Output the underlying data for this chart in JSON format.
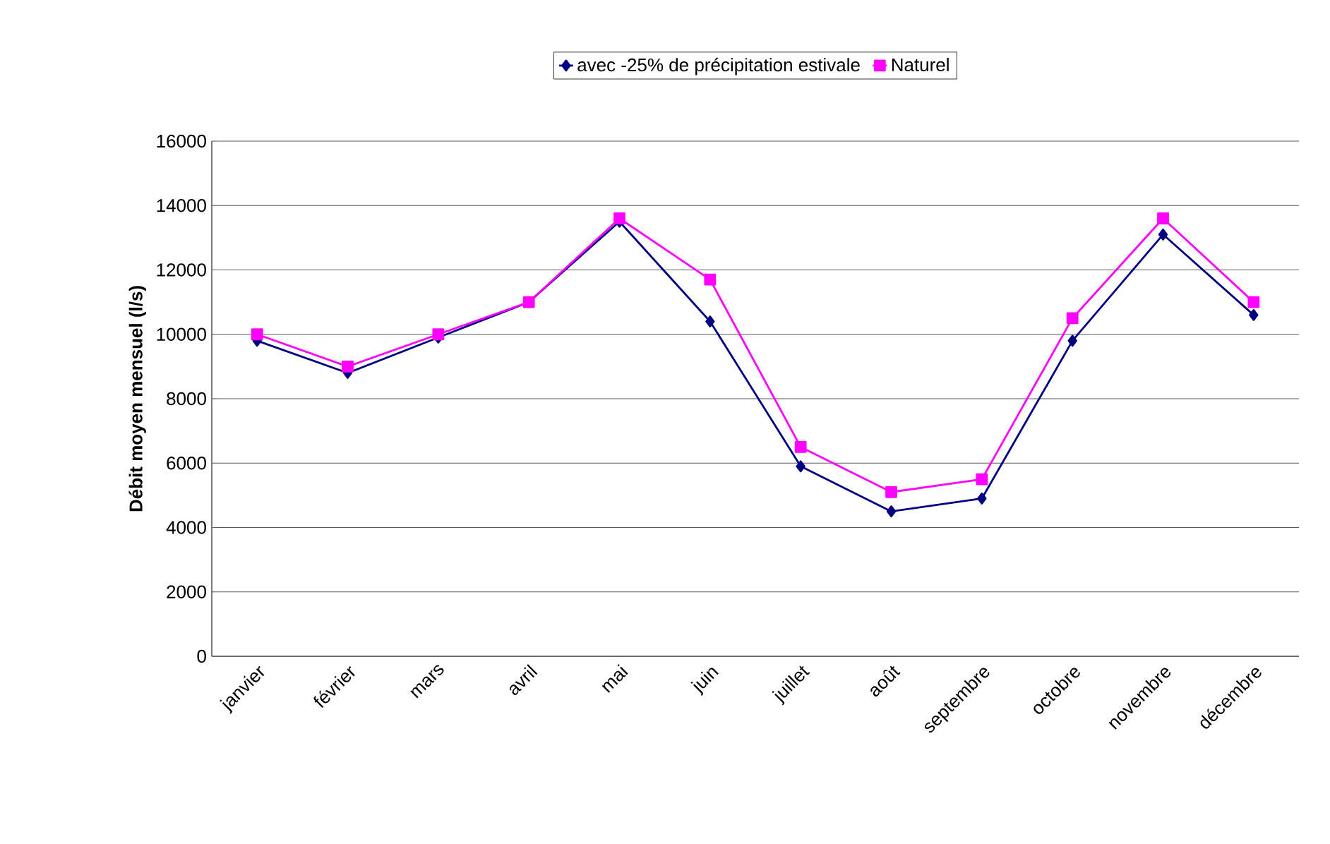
{
  "chart_data": {
    "type": "line",
    "ylabel": "Débit moyen mensuel (l/s)",
    "categories": [
      "janvier",
      "février",
      "mars",
      "avril",
      "mai",
      "juin",
      "juillet",
      "août",
      "septembre",
      "octobre",
      "novembre",
      "décembre"
    ],
    "series": [
      {
        "name": "avec -25% de précipitation estivale",
        "color": "#000080",
        "marker": "diamond",
        "values": [
          9800,
          8800,
          9900,
          11000,
          13500,
          10400,
          5900,
          4500,
          4900,
          9800,
          13100,
          10600
        ]
      },
      {
        "name": "Naturel",
        "color": "#ff00ff",
        "marker": "square",
        "values": [
          10000,
          9000,
          10000,
          11000,
          13600,
          11700,
          6500,
          5100,
          5500,
          10500,
          13600,
          11000
        ]
      }
    ],
    "ylim": [
      0,
      16000
    ],
    "yticks": [
      0,
      2000,
      4000,
      6000,
      8000,
      10000,
      12000,
      14000,
      16000
    ],
    "grid": "y",
    "legend": "top",
    "line_style": "solid"
  }
}
